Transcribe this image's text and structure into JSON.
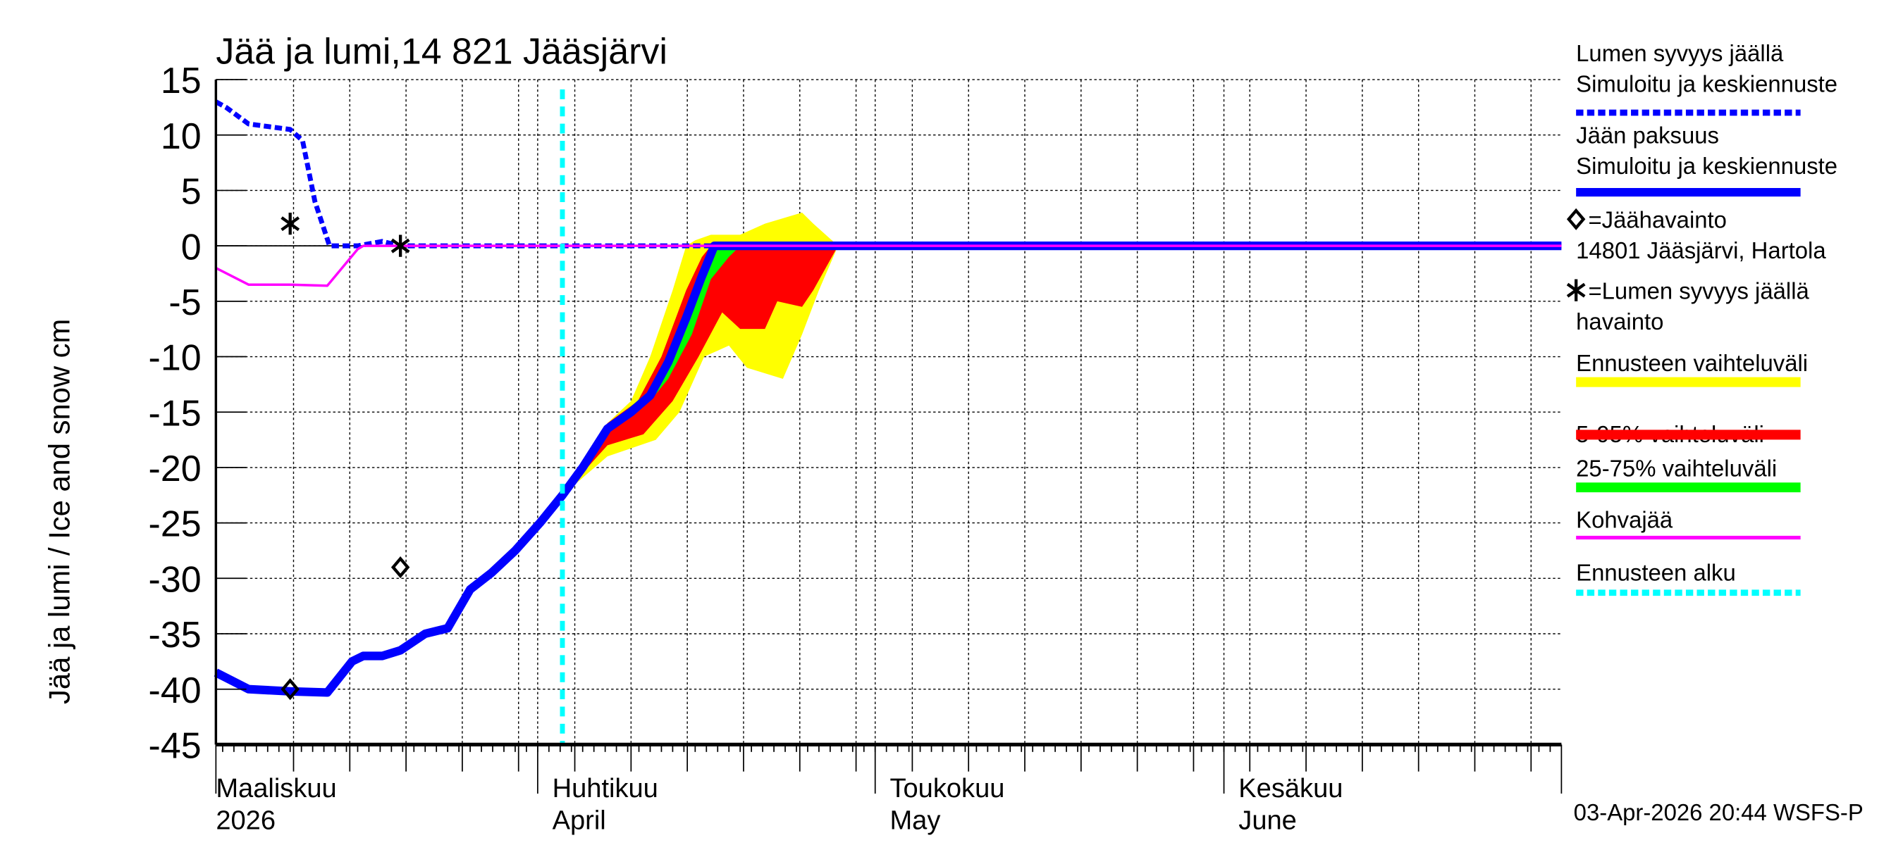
{
  "chart_data": {
    "type": "area",
    "title": "Jää ja lumi,14 821 Jääsjärvi",
    "ylabel": "Jää ja lumi / Ice and snow    cm",
    "ylim": [
      -45,
      15
    ],
    "yticks": [
      15,
      10,
      5,
      0,
      -5,
      -10,
      -15,
      -20,
      -25,
      -30,
      -35,
      -40,
      -45
    ],
    "x_unit": "days since 1 March 2026",
    "xlim": [
      2.4,
      122
    ],
    "month_labels": [
      {
        "day": 2.4,
        "fi": "Maaliskuu",
        "en": "2026"
      },
      {
        "day": 31,
        "fi": "Huhtikuu",
        "en": "April"
      },
      {
        "day": 61,
        "fi": "Toukokuu",
        "en": "May"
      },
      {
        "day": 92,
        "fi": "Kesäkuu",
        "en": "June"
      }
    ],
    "forecast_start_day": 33.2,
    "series": [
      {
        "name": "Lumen syvyys jäällä, simuloitu ja keskiennuste",
        "color": "#0000ff",
        "style": "dashed",
        "points": [
          [
            2.4,
            13
          ],
          [
            3.3,
            12.5
          ],
          [
            5.3,
            11
          ],
          [
            9,
            10.5
          ],
          [
            10.1,
            9.5
          ],
          [
            11.2,
            4
          ],
          [
            12.5,
            0
          ],
          [
            15,
            0
          ],
          [
            17.2,
            0.4
          ],
          [
            18.8,
            0
          ],
          [
            122,
            0
          ]
        ]
      },
      {
        "name": "Jään paksuus, simuloitu ja keskiennuste",
        "color": "#0000ff",
        "style": "solid",
        "points": [
          [
            2.4,
            -38.5
          ],
          [
            5.3,
            -40
          ],
          [
            9,
            -40.2
          ],
          [
            12.3,
            -40.3
          ],
          [
            14.5,
            -37.5
          ],
          [
            15.5,
            -37
          ],
          [
            17.2,
            -37
          ],
          [
            18.8,
            -36.5
          ],
          [
            21,
            -35
          ],
          [
            23,
            -34.5
          ],
          [
            25,
            -31
          ],
          [
            26.9,
            -29.5
          ],
          [
            29,
            -27.5
          ],
          [
            31.2,
            -25
          ],
          [
            33.2,
            -22.5
          ],
          [
            35,
            -20
          ],
          [
            37.2,
            -16.5
          ],
          [
            39.3,
            -15
          ],
          [
            41,
            -13.5
          ],
          [
            42.6,
            -10.5
          ],
          [
            44.2,
            -6.5
          ],
          [
            45.5,
            -3
          ],
          [
            46.7,
            0
          ],
          [
            122,
            0
          ]
        ]
      },
      {
        "name": "Kohvajää",
        "color": "#ff00ff",
        "style": "solid",
        "points": [
          [
            2.4,
            -2
          ],
          [
            5.3,
            -3.5
          ],
          [
            9,
            -3.5
          ],
          [
            12.3,
            -3.6
          ],
          [
            15,
            -0.3
          ],
          [
            15.5,
            0
          ],
          [
            122,
            0
          ]
        ]
      }
    ],
    "bands": [
      {
        "name": "Ennusteen vaihteluväli",
        "color": "#ffff00",
        "upper": [
          [
            33.2,
            -22.5
          ],
          [
            37.2,
            -16
          ],
          [
            39.3,
            -14
          ],
          [
            41,
            -10
          ],
          [
            43,
            -4
          ],
          [
            44.2,
            0
          ],
          [
            45,
            0.5
          ],
          [
            46.4,
            1
          ],
          [
            49,
            1
          ],
          [
            51.2,
            2
          ],
          [
            54.5,
            3
          ],
          [
            55.5,
            2
          ],
          [
            57.7,
            0
          ]
        ],
        "lower": [
          [
            33.2,
            -22.5
          ],
          [
            37.2,
            -19
          ],
          [
            41.5,
            -17.5
          ],
          [
            43.6,
            -15
          ],
          [
            45.8,
            -10
          ],
          [
            48,
            -9
          ],
          [
            49.6,
            -11
          ],
          [
            52.8,
            -12
          ],
          [
            54.5,
            -8
          ],
          [
            56,
            -4
          ],
          [
            57.7,
            0
          ]
        ]
      },
      {
        "name": "5-95% vaihteluväli",
        "color": "#ff0000",
        "upper": [
          [
            33.2,
            -22.5
          ],
          [
            37.2,
            -16
          ],
          [
            39.9,
            -14
          ],
          [
            42,
            -10
          ],
          [
            44.2,
            -4
          ],
          [
            45.6,
            -1
          ],
          [
            46.4,
            0
          ],
          [
            57.7,
            0
          ]
        ],
        "lower": [
          [
            33.2,
            -22.5
          ],
          [
            37.2,
            -18
          ],
          [
            40.4,
            -17
          ],
          [
            43,
            -14
          ],
          [
            45.3,
            -10
          ],
          [
            47.4,
            -6
          ],
          [
            49,
            -7.5
          ],
          [
            51.2,
            -7.5
          ],
          [
            52.3,
            -5
          ],
          [
            54.5,
            -5.5
          ],
          [
            55.5,
            -4
          ],
          [
            57.7,
            0
          ]
        ]
      },
      {
        "name": "25-75% vaihteluväli",
        "color": "#00ff00",
        "upper": [
          [
            37.2,
            -16.3
          ],
          [
            41,
            -13
          ],
          [
            42.6,
            -10
          ],
          [
            44.2,
            -6
          ],
          [
            45.5,
            -2.5
          ],
          [
            46.4,
            0
          ],
          [
            49,
            0
          ]
        ],
        "lower": [
          [
            37.2,
            -16.8
          ],
          [
            41,
            -14
          ],
          [
            42.6,
            -12
          ],
          [
            44.7,
            -8
          ],
          [
            46.4,
            -3
          ],
          [
            48,
            -1
          ],
          [
            49,
            0
          ]
        ]
      }
    ],
    "observations": [
      {
        "name": "Jäähavainto",
        "marker": "diamond",
        "points": [
          [
            9,
            -40
          ],
          [
            18.8,
            -29
          ]
        ]
      },
      {
        "name": "Lumen syvyys jäällä havainto",
        "marker": "asterisk",
        "points": [
          [
            9,
            2
          ],
          [
            18.8,
            0
          ]
        ]
      }
    ]
  },
  "legend": {
    "items": [
      {
        "l1": "Lumen syvyys jäällä",
        "l2": "Simuloitu ja keskiennuste",
        "color": "#0000ff",
        "style": "dashed"
      },
      {
        "l1": "Jään paksuus",
        "l2": "Simuloitu ja keskiennuste",
        "color": "#0000ff",
        "style": "solid"
      },
      {
        "l1": "=Jäähavainto",
        "l2": "14801 Jääsjärvi, Hartola",
        "marker": "diamond"
      },
      {
        "l1": "=Lumen syvyys jäällä",
        "l2": "havainto",
        "marker": "asterisk"
      },
      {
        "l1": "Ennusteen vaihteluväli",
        "color": "#ffff00",
        "style": "band"
      },
      {
        "l1": "5-95% vaihteluväli",
        "color": "#ff0000",
        "style": "band"
      },
      {
        "l1": "25-75% vaihteluväli",
        "color": "#00ff00",
        "style": "band"
      },
      {
        "l1": "Kohvajää",
        "color": "#ff00ff",
        "style": "thin"
      },
      {
        "l1": "Ennusteen alku",
        "color": "#00ffff",
        "style": "dashed"
      }
    ]
  },
  "footer": "03-Apr-2026 20:44 WSFS-P"
}
